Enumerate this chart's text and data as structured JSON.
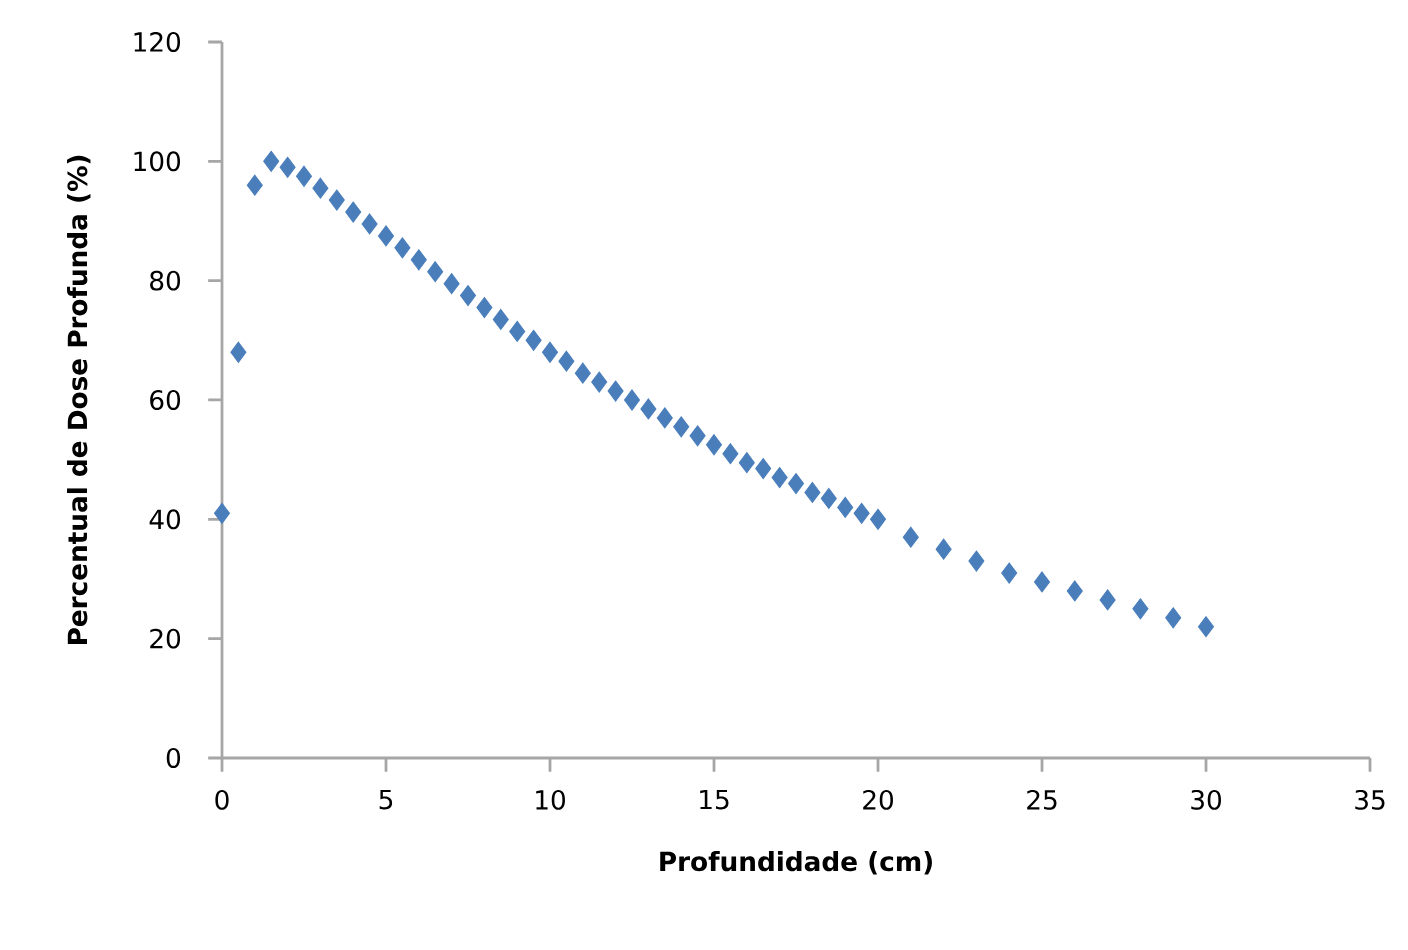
{
  "chart_data": {
    "type": "scatter",
    "xlabel": "Profundidade (cm)",
    "ylabel": "Percentual de Dose Profunda (%)",
    "x": [
      0,
      0.5,
      1,
      1.5,
      2,
      2.5,
      3,
      3.5,
      4,
      4.5,
      5,
      5.5,
      6,
      6.5,
      7,
      7.5,
      8,
      8.5,
      9,
      9.5,
      10,
      10.5,
      11,
      11.5,
      12,
      12.5,
      13,
      13.5,
      14,
      14.5,
      15,
      15.5,
      16,
      16.5,
      17,
      17.5,
      18,
      18.5,
      19,
      19.5,
      20,
      21,
      22,
      23,
      24,
      25,
      26,
      27,
      28,
      29,
      30
    ],
    "series": [
      {
        "color": "#4a7ebb",
        "values": [
          41,
          68,
          96,
          100,
          99,
          97.5,
          95.5,
          93.5,
          91.5,
          89.5,
          87.5,
          85.5,
          83.5,
          81.5,
          79.5,
          77.5,
          75.5,
          73.5,
          71.5,
          70,
          68,
          66.5,
          64.5,
          63,
          61.5,
          60,
          58.5,
          57,
          55.5,
          54,
          52.5,
          51,
          49.5,
          48.5,
          47,
          46,
          44.5,
          43.5,
          42,
          41,
          40,
          37,
          35,
          33,
          31,
          29.5,
          28,
          26.5,
          25,
          23.5,
          22
        ]
      }
    ],
    "xlim": [
      0,
      35
    ],
    "ylim": [
      0,
      120
    ],
    "xticks": [
      0,
      5,
      10,
      15,
      20,
      25,
      30,
      35
    ],
    "yticks": [
      0,
      20,
      40,
      60,
      80,
      100,
      120
    ],
    "marker": "diamond",
    "grid": false
  }
}
